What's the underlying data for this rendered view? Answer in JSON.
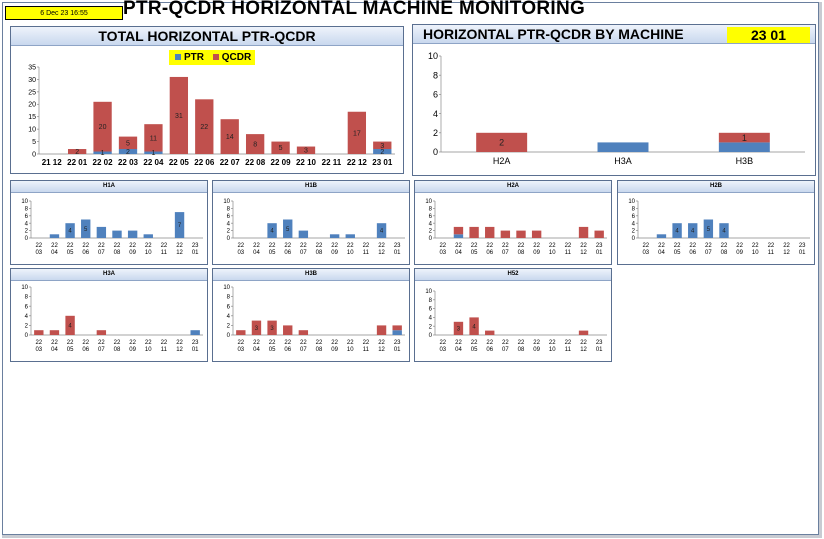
{
  "header": {
    "date": "6 Dec 23 16:55",
    "title": "PTR-QCDR HORIZONTAL MACHINE MONITORING"
  },
  "colors": {
    "ptr": "#4f81bd",
    "qcdr": "#c0504d",
    "legend_bg": "#ffff00"
  },
  "total_panel": {
    "title": "TOTAL HORIZONTAL PTR-QCDR",
    "legend": {
      "ptr": "PTR",
      "qcdr": "QCDR"
    },
    "x_labels": [
      "21 12",
      "22 01",
      "22 02",
      "22 03",
      "22 04",
      "22 05",
      "22 06",
      "22 07",
      "22 08",
      "22 09",
      "22 10",
      "22 11",
      "22 12",
      "23 01"
    ]
  },
  "machine_panel": {
    "title": "HORIZONTAL PTR-QCDR BY MACHINE",
    "week": "23 01"
  },
  "charts": {
    "small_x_labels": [
      [
        "22",
        "03"
      ],
      [
        "22",
        "04"
      ],
      [
        "22",
        "05"
      ],
      [
        "22",
        "06"
      ],
      [
        "22",
        "07"
      ],
      [
        "22",
        "08"
      ],
      [
        "22",
        "09"
      ],
      [
        "22",
        "10"
      ],
      [
        "22",
        "11"
      ],
      [
        "22",
        "12"
      ],
      [
        "23",
        "01"
      ]
    ],
    "H1A": {
      "title": "H1A"
    },
    "H1B": {
      "title": "H1B"
    },
    "H2A": {
      "title": "H2A"
    },
    "H2B": {
      "title": "H2B"
    },
    "H3A": {
      "title": "H3A"
    },
    "H3B": {
      "title": "H3B"
    },
    "H52": {
      "title": "H52"
    }
  },
  "chart_data": [
    {
      "id": "total",
      "type": "bar",
      "stacked": true,
      "title": "TOTAL HORIZONTAL PTR-QCDR",
      "categories": [
        "21 12",
        "22 01",
        "22 02",
        "22 03",
        "22 04",
        "22 05",
        "22 06",
        "22 07",
        "22 08",
        "22 09",
        "22 10",
        "22 11",
        "22 12",
        "23 01"
      ],
      "ylim": [
        0,
        35
      ],
      "yticks": [
        0,
        5,
        10,
        15,
        20,
        25,
        30,
        35
      ],
      "series": [
        {
          "name": "PTR",
          "values": [
            0,
            0,
            1,
            2,
            1,
            0,
            0,
            0,
            0,
            0,
            0,
            0,
            0,
            2
          ]
        },
        {
          "name": "QCDR",
          "values": [
            0,
            2,
            20,
            5,
            11,
            31,
            22,
            14,
            8,
            5,
            3,
            0,
            17,
            3
          ]
        }
      ],
      "data_labels": [
        {
          "series": "QCDR",
          "values": [
            "",
            "2",
            "20",
            "5",
            "11",
            "31",
            "22",
            "14",
            "8",
            "5",
            "3",
            "",
            "17",
            "3"
          ]
        },
        {
          "series": "PTR",
          "values": [
            "",
            "",
            "1",
            "2",
            "1",
            "",
            "",
            "",
            "",
            "",
            "",
            "",
            "",
            "2"
          ]
        }
      ],
      "legend_position": "top"
    },
    {
      "id": "by_machine",
      "type": "bar",
      "stacked": true,
      "title": "HORIZONTAL PTR-QCDR BY MACHINE",
      "categories": [
        "H2A",
        "H3A",
        "H3B"
      ],
      "ylim": [
        0,
        10
      ],
      "yticks": [
        0,
        2,
        4,
        6,
        8,
        10
      ],
      "series": [
        {
          "name": "PTR",
          "values": [
            0,
            1,
            1
          ]
        },
        {
          "name": "QCDR",
          "values": [
            2,
            0,
            1
          ]
        }
      ],
      "data_labels": [
        {
          "series": "QCDR",
          "values": [
            "2",
            "",
            "1"
          ]
        }
      ]
    },
    {
      "id": "H1A",
      "type": "bar",
      "stacked": true,
      "title": "H1A",
      "categories": [
        "22 03",
        "22 04",
        "22 05",
        "22 06",
        "22 07",
        "22 08",
        "22 09",
        "22 10",
        "22 11",
        "22 12",
        "23 01"
      ],
      "ylim": [
        0,
        10
      ],
      "yticks": [
        0,
        2,
        4,
        6,
        8,
        10
      ],
      "series": [
        {
          "name": "PTR",
          "values": [
            0,
            1,
            4,
            5,
            3,
            2,
            2,
            1,
            0,
            7,
            0
          ]
        },
        {
          "name": "QCDR",
          "values": [
            0,
            0,
            0,
            0,
            0,
            0,
            0,
            0,
            0,
            0,
            0
          ]
        }
      ],
      "data_labels": [
        {
          "series": "PTR",
          "values": [
            "",
            "",
            "4",
            "5",
            "",
            "",
            "",
            "",
            "",
            "7",
            ""
          ]
        }
      ]
    },
    {
      "id": "H1B",
      "type": "bar",
      "stacked": true,
      "title": "H1B",
      "categories": [
        "22 03",
        "22 04",
        "22 05",
        "22 06",
        "22 07",
        "22 08",
        "22 09",
        "22 10",
        "22 11",
        "22 12",
        "23 01"
      ],
      "ylim": [
        0,
        10
      ],
      "yticks": [
        0,
        2,
        4,
        6,
        8,
        10
      ],
      "series": [
        {
          "name": "PTR",
          "values": [
            0,
            0,
            4,
            5,
            2,
            0,
            1,
            1,
            0,
            4,
            0
          ]
        },
        {
          "name": "QCDR",
          "values": [
            0,
            0,
            0,
            0,
            0,
            0,
            0,
            0,
            0,
            0,
            0
          ]
        }
      ],
      "data_labels": [
        {
          "series": "PTR",
          "values": [
            "",
            "",
            "4",
            "5",
            "",
            "",
            "",
            "",
            "",
            "4",
            ""
          ]
        }
      ]
    },
    {
      "id": "H2A",
      "type": "bar",
      "stacked": true,
      "title": "H2A",
      "categories": [
        "22 03",
        "22 04",
        "22 05",
        "22 06",
        "22 07",
        "22 08",
        "22 09",
        "22 10",
        "22 11",
        "22 12",
        "23 01"
      ],
      "ylim": [
        0,
        10
      ],
      "yticks": [
        0,
        2,
        4,
        6,
        8,
        10
      ],
      "series": [
        {
          "name": "PTR",
          "values": [
            0,
            1,
            0,
            0,
            0,
            0,
            0,
            0,
            0,
            0,
            0
          ]
        },
        {
          "name": "QCDR",
          "values": [
            0,
            2,
            3,
            3,
            2,
            2,
            2,
            0,
            0,
            3,
            2
          ]
        }
      ],
      "data_labels": [
        {
          "series": "QCDR",
          "values": [
            "",
            "",
            "",
            "",
            "",
            "",
            "",
            "",
            "",
            "",
            ""
          ]
        }
      ]
    },
    {
      "id": "H2B",
      "type": "bar",
      "stacked": true,
      "title": "H2B",
      "categories": [
        "22 03",
        "22 04",
        "22 05",
        "22 06",
        "22 07",
        "22 08",
        "22 09",
        "22 10",
        "22 11",
        "22 12",
        "23 01"
      ],
      "ylim": [
        0,
        10
      ],
      "yticks": [
        0,
        2,
        4,
        6,
        8,
        10
      ],
      "series": [
        {
          "name": "PTR",
          "values": [
            0,
            1,
            4,
            4,
            5,
            4,
            0,
            0,
            0,
            0,
            0
          ]
        },
        {
          "name": "QCDR",
          "values": [
            0,
            0,
            0,
            0,
            0,
            0,
            0,
            0,
            0,
            0,
            0
          ]
        }
      ],
      "data_labels": [
        {
          "series": "PTR",
          "values": [
            "",
            "",
            "4",
            "4",
            "5",
            "4",
            "",
            "",
            "",
            "",
            ""
          ]
        }
      ]
    },
    {
      "id": "H3A",
      "type": "bar",
      "stacked": true,
      "title": "H3A",
      "categories": [
        "22 03",
        "22 04",
        "22 05",
        "22 06",
        "22 07",
        "22 08",
        "22 09",
        "22 10",
        "22 11",
        "22 12",
        "23 01"
      ],
      "ylim": [
        0,
        10
      ],
      "yticks": [
        0,
        2,
        4,
        6,
        8,
        10
      ],
      "series": [
        {
          "name": "PTR",
          "values": [
            0,
            0,
            0,
            0,
            0,
            0,
            0,
            0,
            0,
            0,
            1
          ]
        },
        {
          "name": "QCDR",
          "values": [
            1,
            1,
            4,
            0,
            1,
            0,
            0,
            0,
            0,
            0,
            0
          ]
        }
      ],
      "data_labels": [
        {
          "series": "QCDR",
          "values": [
            "",
            "",
            "4",
            "",
            "",
            "",
            "",
            "",
            "",
            "",
            ""
          ]
        }
      ]
    },
    {
      "id": "H3B",
      "type": "bar",
      "stacked": true,
      "title": "H3B",
      "categories": [
        "22 03",
        "22 04",
        "22 05",
        "22 06",
        "22 07",
        "22 08",
        "22 09",
        "22 10",
        "22 11",
        "22 12",
        "23 01"
      ],
      "ylim": [
        0,
        10
      ],
      "yticks": [
        0,
        2,
        4,
        6,
        8,
        10
      ],
      "series": [
        {
          "name": "PTR",
          "values": [
            0,
            0,
            0,
            0,
            0,
            0,
            0,
            0,
            0,
            0,
            1
          ]
        },
        {
          "name": "QCDR",
          "values": [
            1,
            3,
            3,
            2,
            1,
            0,
            0,
            0,
            0,
            2,
            1
          ]
        }
      ],
      "data_labels": [
        {
          "series": "QCDR",
          "values": [
            "",
            "3",
            "3",
            "",
            "",
            "",
            "",
            "",
            "",
            "",
            ""
          ]
        }
      ]
    },
    {
      "id": "H52",
      "type": "bar",
      "stacked": true,
      "title": "H52",
      "categories": [
        "22 03",
        "22 04",
        "22 05",
        "22 06",
        "22 07",
        "22 08",
        "22 09",
        "22 10",
        "22 11",
        "22 12",
        "23 01"
      ],
      "ylim": [
        0,
        10
      ],
      "yticks": [
        0,
        2,
        4,
        6,
        8,
        10
      ],
      "series": [
        {
          "name": "PTR",
          "values": [
            0,
            0,
            0,
            0,
            0,
            0,
            0,
            0,
            0,
            0,
            0
          ]
        },
        {
          "name": "QCDR",
          "values": [
            0,
            3,
            4,
            1,
            0,
            0,
            0,
            0,
            0,
            1,
            0
          ]
        }
      ],
      "data_labels": [
        {
          "series": "QCDR",
          "values": [
            "",
            "3",
            "4",
            "",
            "",
            "",
            "",
            "",
            "",
            "",
            ""
          ]
        }
      ]
    }
  ]
}
